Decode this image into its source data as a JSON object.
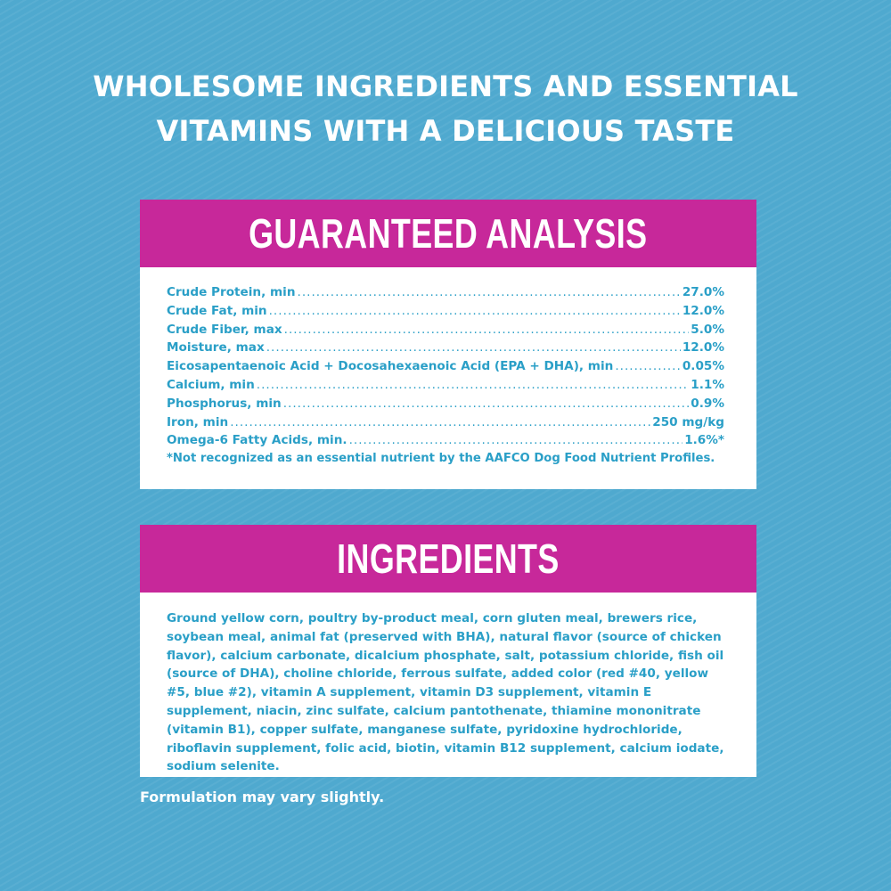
{
  "headline": {
    "line1": "WHOLESOME INGREDIENTS AND ESSENTIAL",
    "line2": "VITAMINS WITH A DELICIOUS TASTE"
  },
  "analysis": {
    "title": "GUARANTEED ANALYSIS",
    "rows": [
      {
        "label": "Crude Protein, min",
        "value": "27.0%"
      },
      {
        "label": "Crude Fat, min",
        "value": "12.0%"
      },
      {
        "label": "Crude Fiber, max",
        "value": "5.0%"
      },
      {
        "label": "Moisture, max",
        "value": "12.0%"
      },
      {
        "label": "Eicosapentaenoic Acid + Docosahexaenoic Acid (EPA + DHA), min",
        "value": "0.05%"
      },
      {
        "label": "Calcium, min",
        "value": "1.1%"
      },
      {
        "label": "Phosphorus, min",
        "value": "0.9%"
      },
      {
        "label": "Iron, min",
        "value": "250 mg/kg"
      },
      {
        "label": "Omega-6 Fatty Acids, min.",
        "value": "1.6%*"
      }
    ],
    "footnote": "*Not recognized as an essential nutrient by the AAFCO Dog Food Nutrient Profiles."
  },
  "ingredients": {
    "title": "INGREDIENTS",
    "text": "Ground yellow corn, poultry by-product meal, corn gluten meal, brewers rice, soybean meal, animal fat (preserved with BHA), natural flavor (source of chicken flavor), calcium carbonate, dicalcium phosphate, salt, potassium chloride, fish oil (source of DHA), choline chloride, ferrous sulfate, added color (red #40, yellow #5, blue #2), vitamin A supplement, vitamin D3 supplement, vitamin E supplement, niacin, zinc sulfate, calcium pantothenate, thiamine mononitrate (vitamin B1), copper sulfate, manganese sulfate, pyridoxine hydrochloride, riboflavin supplement, folic acid, biotin, vitamin B12 supplement, calcium iodate, sodium selenite."
  },
  "note": "Formulation may vary slightly.",
  "colors": {
    "background": "#4fa9cf",
    "header": "#c7289a",
    "text_accent": "#2a9fc7"
  }
}
